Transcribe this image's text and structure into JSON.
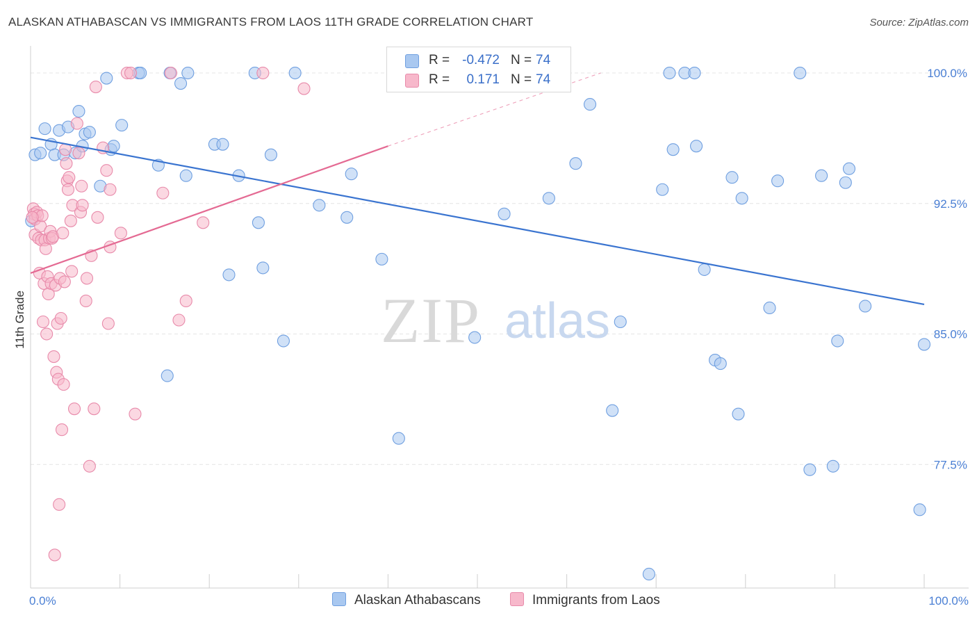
{
  "header": {
    "title": "ALASKAN ATHABASCAN VS IMMIGRANTS FROM LAOS 11TH GRADE CORRELATION CHART",
    "source": "Source: ZipAtlas.com"
  },
  "watermark": {
    "zip": "ZIP",
    "atlas": "atlas"
  },
  "legend": {
    "r_label": "R =",
    "n_label": "N =",
    "items": [
      {
        "r": "-0.472",
        "n": "74",
        "color": "#a9c8f0",
        "border": "#6f9fe0"
      },
      {
        "r": "0.171",
        "n": "74",
        "color": "#f7b8cb",
        "border": "#e88aaa"
      }
    ]
  },
  "bottom_legend": [
    {
      "label": "Alaskan Athabascans",
      "color": "#a9c8f0",
      "border": "#6f9fe0"
    },
    {
      "label": "Immigrants from Laos",
      "color": "#f7b8cb",
      "border": "#e88aaa"
    }
  ],
  "chart_data": {
    "type": "scatter",
    "title": "ALASKAN ATHABASCAN VS IMMIGRANTS FROM LAOS 11TH GRADE CORRELATION CHART",
    "xlabel": "",
    "ylabel": "11th Grade",
    "xlim": [
      0,
      100
    ],
    "ylim": [
      70.4,
      101.0
    ],
    "x_tick_labels": [
      "0.0%",
      "100.0%"
    ],
    "y_ticks": [
      77.5,
      85.0,
      92.5,
      100.0
    ],
    "y_tick_labels": [
      "77.5%",
      "85.0%",
      "92.5%",
      "100.0%"
    ],
    "grid": true,
    "legend_position": "top-center",
    "series": [
      {
        "name": "Alaskan Athabascans",
        "color": "#6f9fe0",
        "fill": "#a9c8f0",
        "trend": {
          "x": [
            0,
            100
          ],
          "y": [
            96.3,
            86.7
          ],
          "color": "#3a74d0"
        },
        "points": [
          [
            0.5,
            95.3
          ],
          [
            1.1,
            95.4
          ],
          [
            1.6,
            96.8
          ],
          [
            2.3,
            95.9
          ],
          [
            2.7,
            95.3
          ],
          [
            3.2,
            96.7
          ],
          [
            3.7,
            95.3
          ],
          [
            4.2,
            96.9
          ],
          [
            5.0,
            95.4
          ],
          [
            5.4,
            97.8
          ],
          [
            5.8,
            95.8
          ],
          [
            6.1,
            96.5
          ],
          [
            6.6,
            96.6
          ],
          [
            7.8,
            93.5
          ],
          [
            8.5,
            99.7
          ],
          [
            9.0,
            95.6
          ],
          [
            9.3,
            95.8
          ],
          [
            10.2,
            97.0
          ],
          [
            12.1,
            100.0
          ],
          [
            12.3,
            100.0
          ],
          [
            14.3,
            94.7
          ],
          [
            15.3,
            82.6
          ],
          [
            15.6,
            100.0
          ],
          [
            16.8,
            99.4
          ],
          [
            17.4,
            94.1
          ],
          [
            17.6,
            100.0
          ],
          [
            20.6,
            95.9
          ],
          [
            21.5,
            95.9
          ],
          [
            22.2,
            88.4
          ],
          [
            23.3,
            94.1
          ],
          [
            25.1,
            100.0
          ],
          [
            25.5,
            91.4
          ],
          [
            26.0,
            88.8
          ],
          [
            26.9,
            95.3
          ],
          [
            28.3,
            84.6
          ],
          [
            29.6,
            100.0
          ],
          [
            32.3,
            92.4
          ],
          [
            35.4,
            91.7
          ],
          [
            35.9,
            94.2
          ],
          [
            39.3,
            89.3
          ],
          [
            41.2,
            79.0
          ],
          [
            49.7,
            84.8
          ],
          [
            53.0,
            91.9
          ],
          [
            58.0,
            92.8
          ],
          [
            61.0,
            94.8
          ],
          [
            62.6,
            98.2
          ],
          [
            65.1,
            80.6
          ],
          [
            66.0,
            85.7
          ],
          [
            69.2,
            71.2
          ],
          [
            70.7,
            93.3
          ],
          [
            71.5,
            100.0
          ],
          [
            71.9,
            95.6
          ],
          [
            73.2,
            100.0
          ],
          [
            74.3,
            100.0
          ],
          [
            74.5,
            95.8
          ],
          [
            75.4,
            88.7
          ],
          [
            76.6,
            83.5
          ],
          [
            77.2,
            83.3
          ],
          [
            78.5,
            94.0
          ],
          [
            79.2,
            80.4
          ],
          [
            79.6,
            92.8
          ],
          [
            82.7,
            86.5
          ],
          [
            83.6,
            93.8
          ],
          [
            86.1,
            100.0
          ],
          [
            87.2,
            77.2
          ],
          [
            88.5,
            94.1
          ],
          [
            89.8,
            77.4
          ],
          [
            90.3,
            84.6
          ],
          [
            91.2,
            93.7
          ],
          [
            91.6,
            94.5
          ],
          [
            93.4,
            86.6
          ],
          [
            99.5,
            74.9
          ],
          [
            100.0,
            84.4
          ],
          [
            0.1,
            91.5
          ]
        ]
      },
      {
        "name": "Immigrants from Laos",
        "color": "#e88aaa",
        "fill": "#f7b8cb",
        "trend": {
          "x": [
            0,
            40.0
          ],
          "y": [
            88.5,
            95.8
          ],
          "dash_to": [
            63.8,
            100.0
          ],
          "color": "#e46a93"
        },
        "points": [
          [
            0.3,
            92.2
          ],
          [
            0.4,
            91.9
          ],
          [
            0.5,
            91.6
          ],
          [
            0.5,
            90.7
          ],
          [
            0.7,
            92.0
          ],
          [
            0.8,
            91.8
          ],
          [
            0.9,
            90.5
          ],
          [
            1.0,
            88.5
          ],
          [
            1.1,
            91.2
          ],
          [
            1.2,
            90.4
          ],
          [
            1.3,
            91.8
          ],
          [
            1.4,
            85.7
          ],
          [
            1.5,
            87.9
          ],
          [
            1.6,
            90.4
          ],
          [
            1.7,
            89.9
          ],
          [
            1.8,
            85.0
          ],
          [
            1.9,
            88.3
          ],
          [
            2.0,
            87.3
          ],
          [
            2.1,
            90.5
          ],
          [
            2.2,
            90.9
          ],
          [
            2.3,
            87.9
          ],
          [
            2.4,
            90.5
          ],
          [
            2.5,
            90.6
          ],
          [
            2.6,
            83.7
          ],
          [
            2.7,
            72.3
          ],
          [
            2.8,
            87.8
          ],
          [
            2.9,
            82.8
          ],
          [
            3.0,
            85.6
          ],
          [
            3.1,
            82.4
          ],
          [
            3.2,
            75.2
          ],
          [
            3.3,
            88.2
          ],
          [
            3.4,
            85.9
          ],
          [
            3.5,
            79.5
          ],
          [
            3.6,
            90.8
          ],
          [
            3.7,
            82.1
          ],
          [
            3.8,
            88.0
          ],
          [
            3.9,
            95.6
          ],
          [
            4.0,
            94.8
          ],
          [
            4.1,
            93.8
          ],
          [
            4.2,
            93.3
          ],
          [
            4.3,
            94.0
          ],
          [
            4.5,
            91.5
          ],
          [
            4.6,
            88.6
          ],
          [
            4.7,
            92.4
          ],
          [
            4.9,
            80.7
          ],
          [
            5.2,
            97.1
          ],
          [
            5.4,
            95.4
          ],
          [
            5.6,
            92.0
          ],
          [
            5.7,
            93.5
          ],
          [
            5.8,
            92.4
          ],
          [
            6.2,
            86.9
          ],
          [
            6.3,
            88.2
          ],
          [
            6.6,
            77.4
          ],
          [
            6.8,
            89.5
          ],
          [
            7.1,
            80.7
          ],
          [
            7.3,
            99.2
          ],
          [
            7.5,
            91.7
          ],
          [
            8.1,
            95.7
          ],
          [
            8.5,
            94.4
          ],
          [
            8.7,
            85.6
          ],
          [
            8.9,
            93.3
          ],
          [
            8.9,
            90.0
          ],
          [
            10.1,
            90.8
          ],
          [
            10.8,
            100.0
          ],
          [
            11.2,
            100.0
          ],
          [
            11.7,
            80.4
          ],
          [
            14.8,
            93.1
          ],
          [
            15.7,
            100.0
          ],
          [
            16.6,
            85.8
          ],
          [
            17.4,
            86.9
          ],
          [
            19.3,
            91.4
          ],
          [
            26.0,
            100.0
          ],
          [
            30.6,
            99.1
          ],
          [
            0.2,
            91.7
          ]
        ]
      }
    ]
  }
}
